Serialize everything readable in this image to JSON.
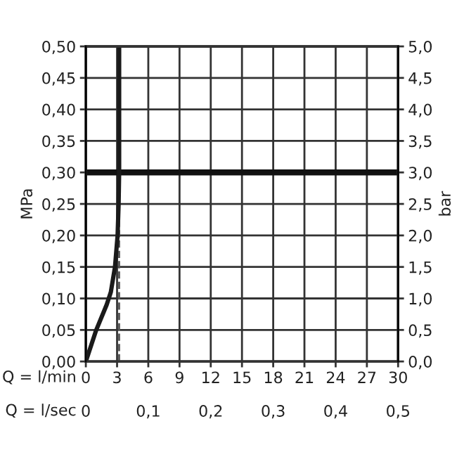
{
  "chart_data": {
    "type": "line",
    "xlabel": "Q = l/min",
    "x2label": "Q = l/sec",
    "ylabel": "MPa",
    "y2label": "bar",
    "series": [
      {
        "color": "#1a1a1a",
        "x": [
          0,
          1.0,
          2.0,
          2.4,
          2.8,
          3.05,
          3.15,
          3.2,
          3.2
        ],
        "values": [
          0,
          0.05,
          0.09,
          0.11,
          0.15,
          0.2,
          0.25,
          0.3,
          0.5
        ]
      }
    ],
    "xlim": [
      0,
      30
    ],
    "xticks": [
      0,
      3,
      6,
      9,
      12,
      15,
      18,
      21,
      24,
      27,
      30
    ],
    "x2lim": [
      0,
      0.5
    ],
    "x2ticks": [
      0,
      {
        "value": 0.1,
        "label": "0,1"
      },
      {
        "value": 0.2,
        "label": "0,2"
      },
      {
        "value": 0.3,
        "label": "0,3"
      },
      {
        "value": 0.4,
        "label": "0,4"
      },
      {
        "value": 0.5,
        "label": "0,5"
      }
    ],
    "ylim": [
      0,
      0.5
    ],
    "yticks": [
      {
        "value": 0,
        "label": "0,00"
      },
      {
        "value": 0.05,
        "label": "0,05"
      },
      {
        "value": 0.1,
        "label": "0,10"
      },
      {
        "value": 0.15,
        "label": "0,15"
      },
      {
        "value": 0.2,
        "label": "0,20"
      },
      {
        "value": 0.25,
        "label": "0,25"
      },
      {
        "value": 0.3,
        "label": "0,30"
      },
      {
        "value": 0.35,
        "label": "0,35"
      },
      {
        "value": 0.4,
        "label": "0,40"
      },
      {
        "value": 0.45,
        "label": "0,45"
      },
      {
        "value": 0.5,
        "label": "0,50"
      }
    ],
    "y2lim": [
      0,
      5
    ],
    "y2ticks": [
      {
        "value": 0,
        "label": "0,0"
      },
      {
        "value": 0.5,
        "label": "0,5"
      },
      {
        "value": 1,
        "label": "1,0"
      },
      {
        "value": 1.5,
        "label": "1,5"
      },
      {
        "value": 2,
        "label": "2,0"
      },
      {
        "value": 2.5,
        "label": "2,5"
      },
      {
        "value": 3,
        "label": "3,0"
      },
      {
        "value": 3.5,
        "label": "3,5"
      },
      {
        "value": 4,
        "label": "4,0"
      },
      {
        "value": 4.5,
        "label": "4,5"
      },
      {
        "value": 5,
        "label": "5,0"
      }
    ],
    "ref_lines": [
      {
        "axis": "x",
        "value": 3.2,
        "color": "#555555",
        "line_style": "dashed"
      },
      {
        "axis": "y",
        "value": 0.3,
        "color": "#111111",
        "line_style": "solid"
      }
    ],
    "grid": true,
    "legend": false,
    "marker": "none",
    "line_style": "solid"
  }
}
